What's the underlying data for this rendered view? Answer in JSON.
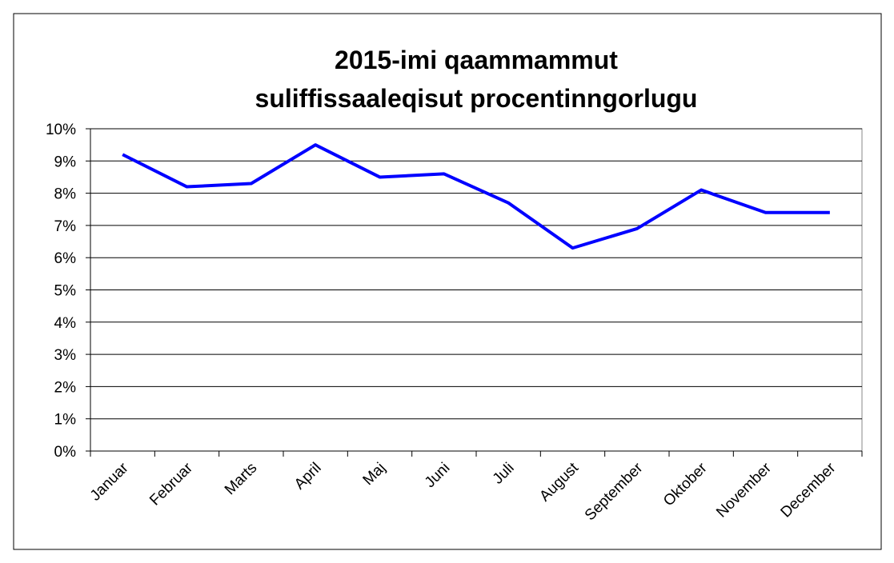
{
  "chart_data": {
    "type": "line",
    "title": [
      "2015-imi qaammammut",
      "suliffissaaleqisut procentinngorlugu"
    ],
    "categories": [
      "Januar",
      "Februar",
      "Marts",
      "April",
      "Maj",
      "Juni",
      "Juli",
      "August",
      "September",
      "Oktober",
      "November",
      "December"
    ],
    "series": [
      {
        "name": null,
        "color": "#0000ff",
        "values": [
          9.2,
          8.2,
          8.3,
          9.5,
          8.5,
          8.6,
          7.7,
          6.3,
          6.9,
          8.1,
          7.4,
          7.4
        ]
      }
    ],
    "ylim": [
      0,
      10
    ],
    "yticks": [
      {
        "value": 0,
        "label": "0%"
      },
      {
        "value": 1,
        "label": "1%"
      },
      {
        "value": 2,
        "label": "2%"
      },
      {
        "value": 3,
        "label": "3%"
      },
      {
        "value": 4,
        "label": "4%"
      },
      {
        "value": 5,
        "label": "5%"
      },
      {
        "value": 6,
        "label": "6%"
      },
      {
        "value": 7,
        "label": "7%"
      },
      {
        "value": 8,
        "label": "8%"
      },
      {
        "value": 9,
        "label": "9%"
      },
      {
        "value": 10,
        "label": "10%"
      }
    ],
    "grid": true
  }
}
